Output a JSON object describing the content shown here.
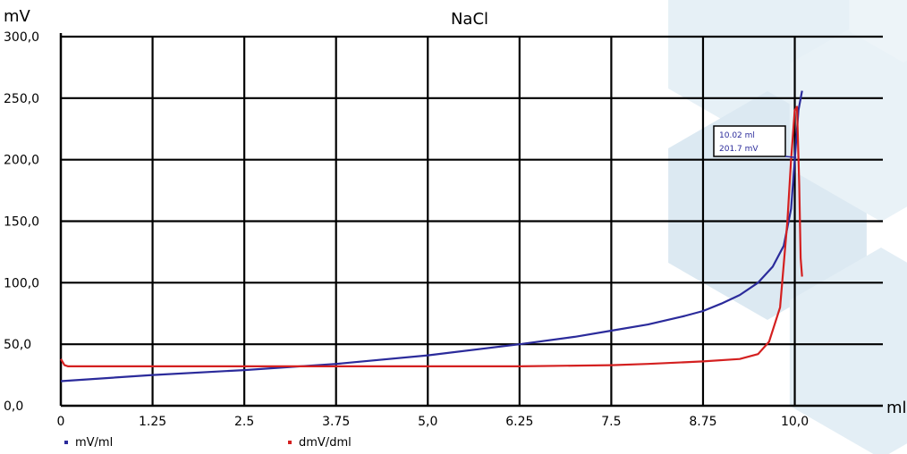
{
  "chart_data": {
    "type": "line",
    "title": "NaCl",
    "ylabel": "mV",
    "xlabel": "ml",
    "xlim": [
      0,
      11.2
    ],
    "ylim": [
      0,
      300
    ],
    "x_ticks": [
      0,
      1.25,
      2.5,
      3.75,
      5.0,
      6.25,
      7.5,
      8.75,
      10.0
    ],
    "x_tick_labels": [
      "0",
      "1.25",
      "2.5",
      "3.75",
      "5,0",
      "6.25",
      "7.5",
      "8.75",
      "10,0"
    ],
    "y_ticks": [
      0,
      50,
      100,
      150,
      200,
      250,
      300
    ],
    "y_tick_labels": [
      "0,0",
      "50,0",
      "100,0",
      "150,0",
      "200,0",
      "250,0",
      "300,0"
    ],
    "grid": true,
    "legend_position": "bottom-left",
    "series": [
      {
        "name": "mV/ml",
        "color": "#2b2b9b",
        "x": [
          0,
          1.25,
          2.5,
          3.75,
          5.0,
          6.25,
          7.0,
          7.5,
          8.0,
          8.5,
          8.75,
          9.0,
          9.25,
          9.5,
          9.7,
          9.85,
          9.95,
          10.0,
          10.05,
          10.1
        ],
        "y": [
          20,
          25,
          29,
          34,
          41,
          50,
          56,
          61,
          66,
          73,
          77,
          83,
          90,
          100,
          113,
          130,
          160,
          200,
          240,
          256
        ]
      },
      {
        "name": "dmV/dml",
        "color": "#d42020",
        "x": [
          0,
          0.05,
          0.1,
          1.25,
          2.5,
          3.75,
          5.0,
          6.25,
          7.5,
          8.0,
          8.75,
          9.25,
          9.5,
          9.65,
          9.8,
          9.9,
          9.95,
          10.0,
          10.03,
          10.06,
          10.08,
          10.1
        ],
        "y": [
          38,
          33,
          32,
          32,
          32,
          32,
          32,
          32,
          33,
          34,
          36,
          38,
          42,
          52,
          80,
          150,
          200,
          240,
          243,
          180,
          120,
          105
        ]
      }
    ],
    "annotations": [
      {
        "lines": [
          "10.02 ml",
          "201.7 mV"
        ],
        "x": 10.02,
        "y": 201.7
      }
    ]
  }
}
